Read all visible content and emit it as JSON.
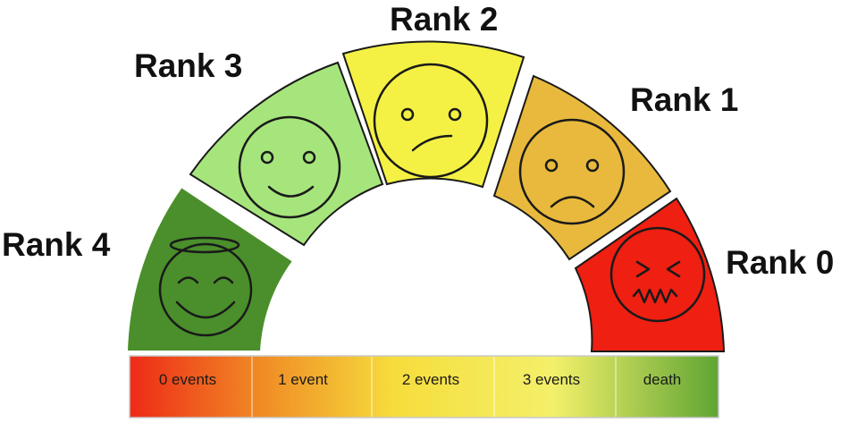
{
  "ranks": [
    {
      "label": "Rank 4",
      "color": "#4a8f2b",
      "face": "angel-smile"
    },
    {
      "label": "Rank 3",
      "color": "#a6e57c",
      "face": "smile"
    },
    {
      "label": "Rank 2",
      "color": "#f4f144",
      "face": "slight-frown"
    },
    {
      "label": "Rank 1",
      "color": "#e8b93c",
      "face": "frown"
    },
    {
      "label": "Rank 0",
      "color": "#ef1f12",
      "face": "distressed"
    }
  ],
  "scale": {
    "segments": [
      "0 events",
      "1 event",
      "2 events",
      "3 events",
      "death"
    ],
    "gradient_colors": [
      "#ee2a17",
      "#f08a25",
      "#f6dd3c",
      "#f3f06a",
      "#5fa534"
    ]
  }
}
